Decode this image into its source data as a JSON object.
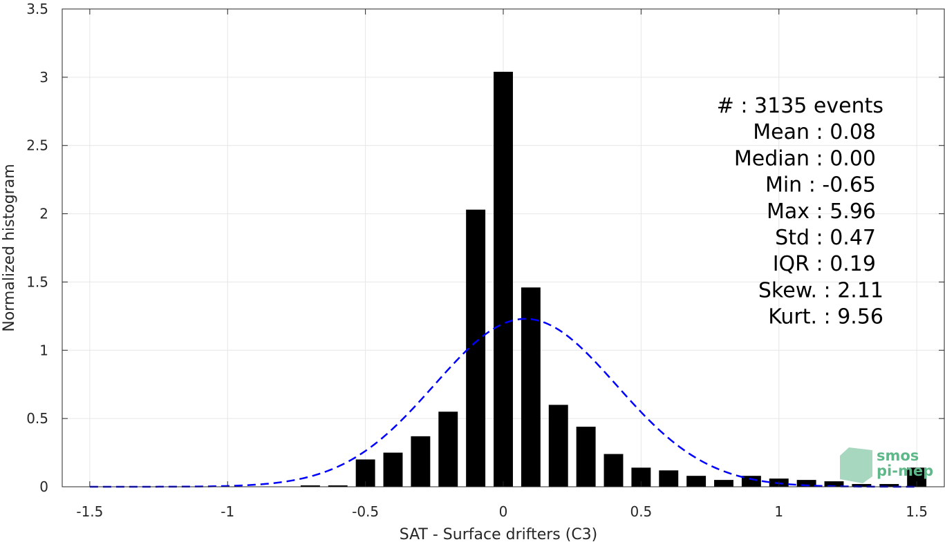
{
  "chart_data": {
    "type": "bar",
    "xlabel": "SAT - Surface drifters (C3)",
    "ylabel": "Normalized histogram",
    "xlim": [
      -1.6,
      1.6
    ],
    "ylim": [
      0,
      3.5
    ],
    "grid": true,
    "x_ticks": [
      {
        "value": -1.5,
        "label": "-1.5"
      },
      {
        "value": -1,
        "label": "-1"
      },
      {
        "value": -0.5,
        "label": "-0.5"
      },
      {
        "value": 0,
        "label": "0"
      },
      {
        "value": 0.5,
        "label": "0.5"
      },
      {
        "value": 1,
        "label": "1"
      },
      {
        "value": 1.5,
        "label": "1.5"
      }
    ],
    "y_ticks": [
      {
        "value": 0,
        "label": "0"
      },
      {
        "value": 0.5,
        "label": "0.5"
      },
      {
        "value": 1,
        "label": "1"
      },
      {
        "value": 1.5,
        "label": "1.5"
      },
      {
        "value": 2,
        "label": "2"
      },
      {
        "value": 2.5,
        "label": "2.5"
      },
      {
        "value": 3,
        "label": "3"
      },
      {
        "value": 3.5,
        "label": "3.5"
      }
    ],
    "histogram": {
      "color": "#000000",
      "bin_centers": [
        -0.7,
        -0.6,
        -0.5,
        -0.4,
        -0.3,
        -0.2,
        -0.1,
        0.0,
        0.1,
        0.2,
        0.3,
        0.4,
        0.5,
        0.6,
        0.7,
        0.8,
        0.9,
        1.0,
        1.1,
        1.2,
        1.3,
        1.4,
        1.5
      ],
      "values": [
        0.01,
        0.01,
        0.2,
        0.25,
        0.37,
        0.55,
        2.03,
        3.04,
        1.46,
        0.6,
        0.44,
        0.24,
        0.14,
        0.12,
        0.08,
        0.05,
        0.08,
        0.06,
        0.05,
        0.04,
        0.02,
        0.02,
        0.14
      ],
      "bar_width": 0.07
    },
    "normal_fit": {
      "color": "#0000ff",
      "style": "dashed",
      "mean": 0.08,
      "std": 0.33,
      "peak": 1.23,
      "x_range": [
        -1.5,
        1.5
      ]
    },
    "annotations": [
      "#  : 3135 events",
      "Mean : 0.08",
      "Median : 0.00",
      "Min : -0.65",
      "Max : 5.96",
      "Std : 0.47",
      "IQR : 0.19",
      "Skew. : 2.11",
      "Kurt. : 9.56"
    ]
  },
  "logo": {
    "line1": "smos",
    "line2": "pi-mep",
    "color": "#5fb88a"
  }
}
